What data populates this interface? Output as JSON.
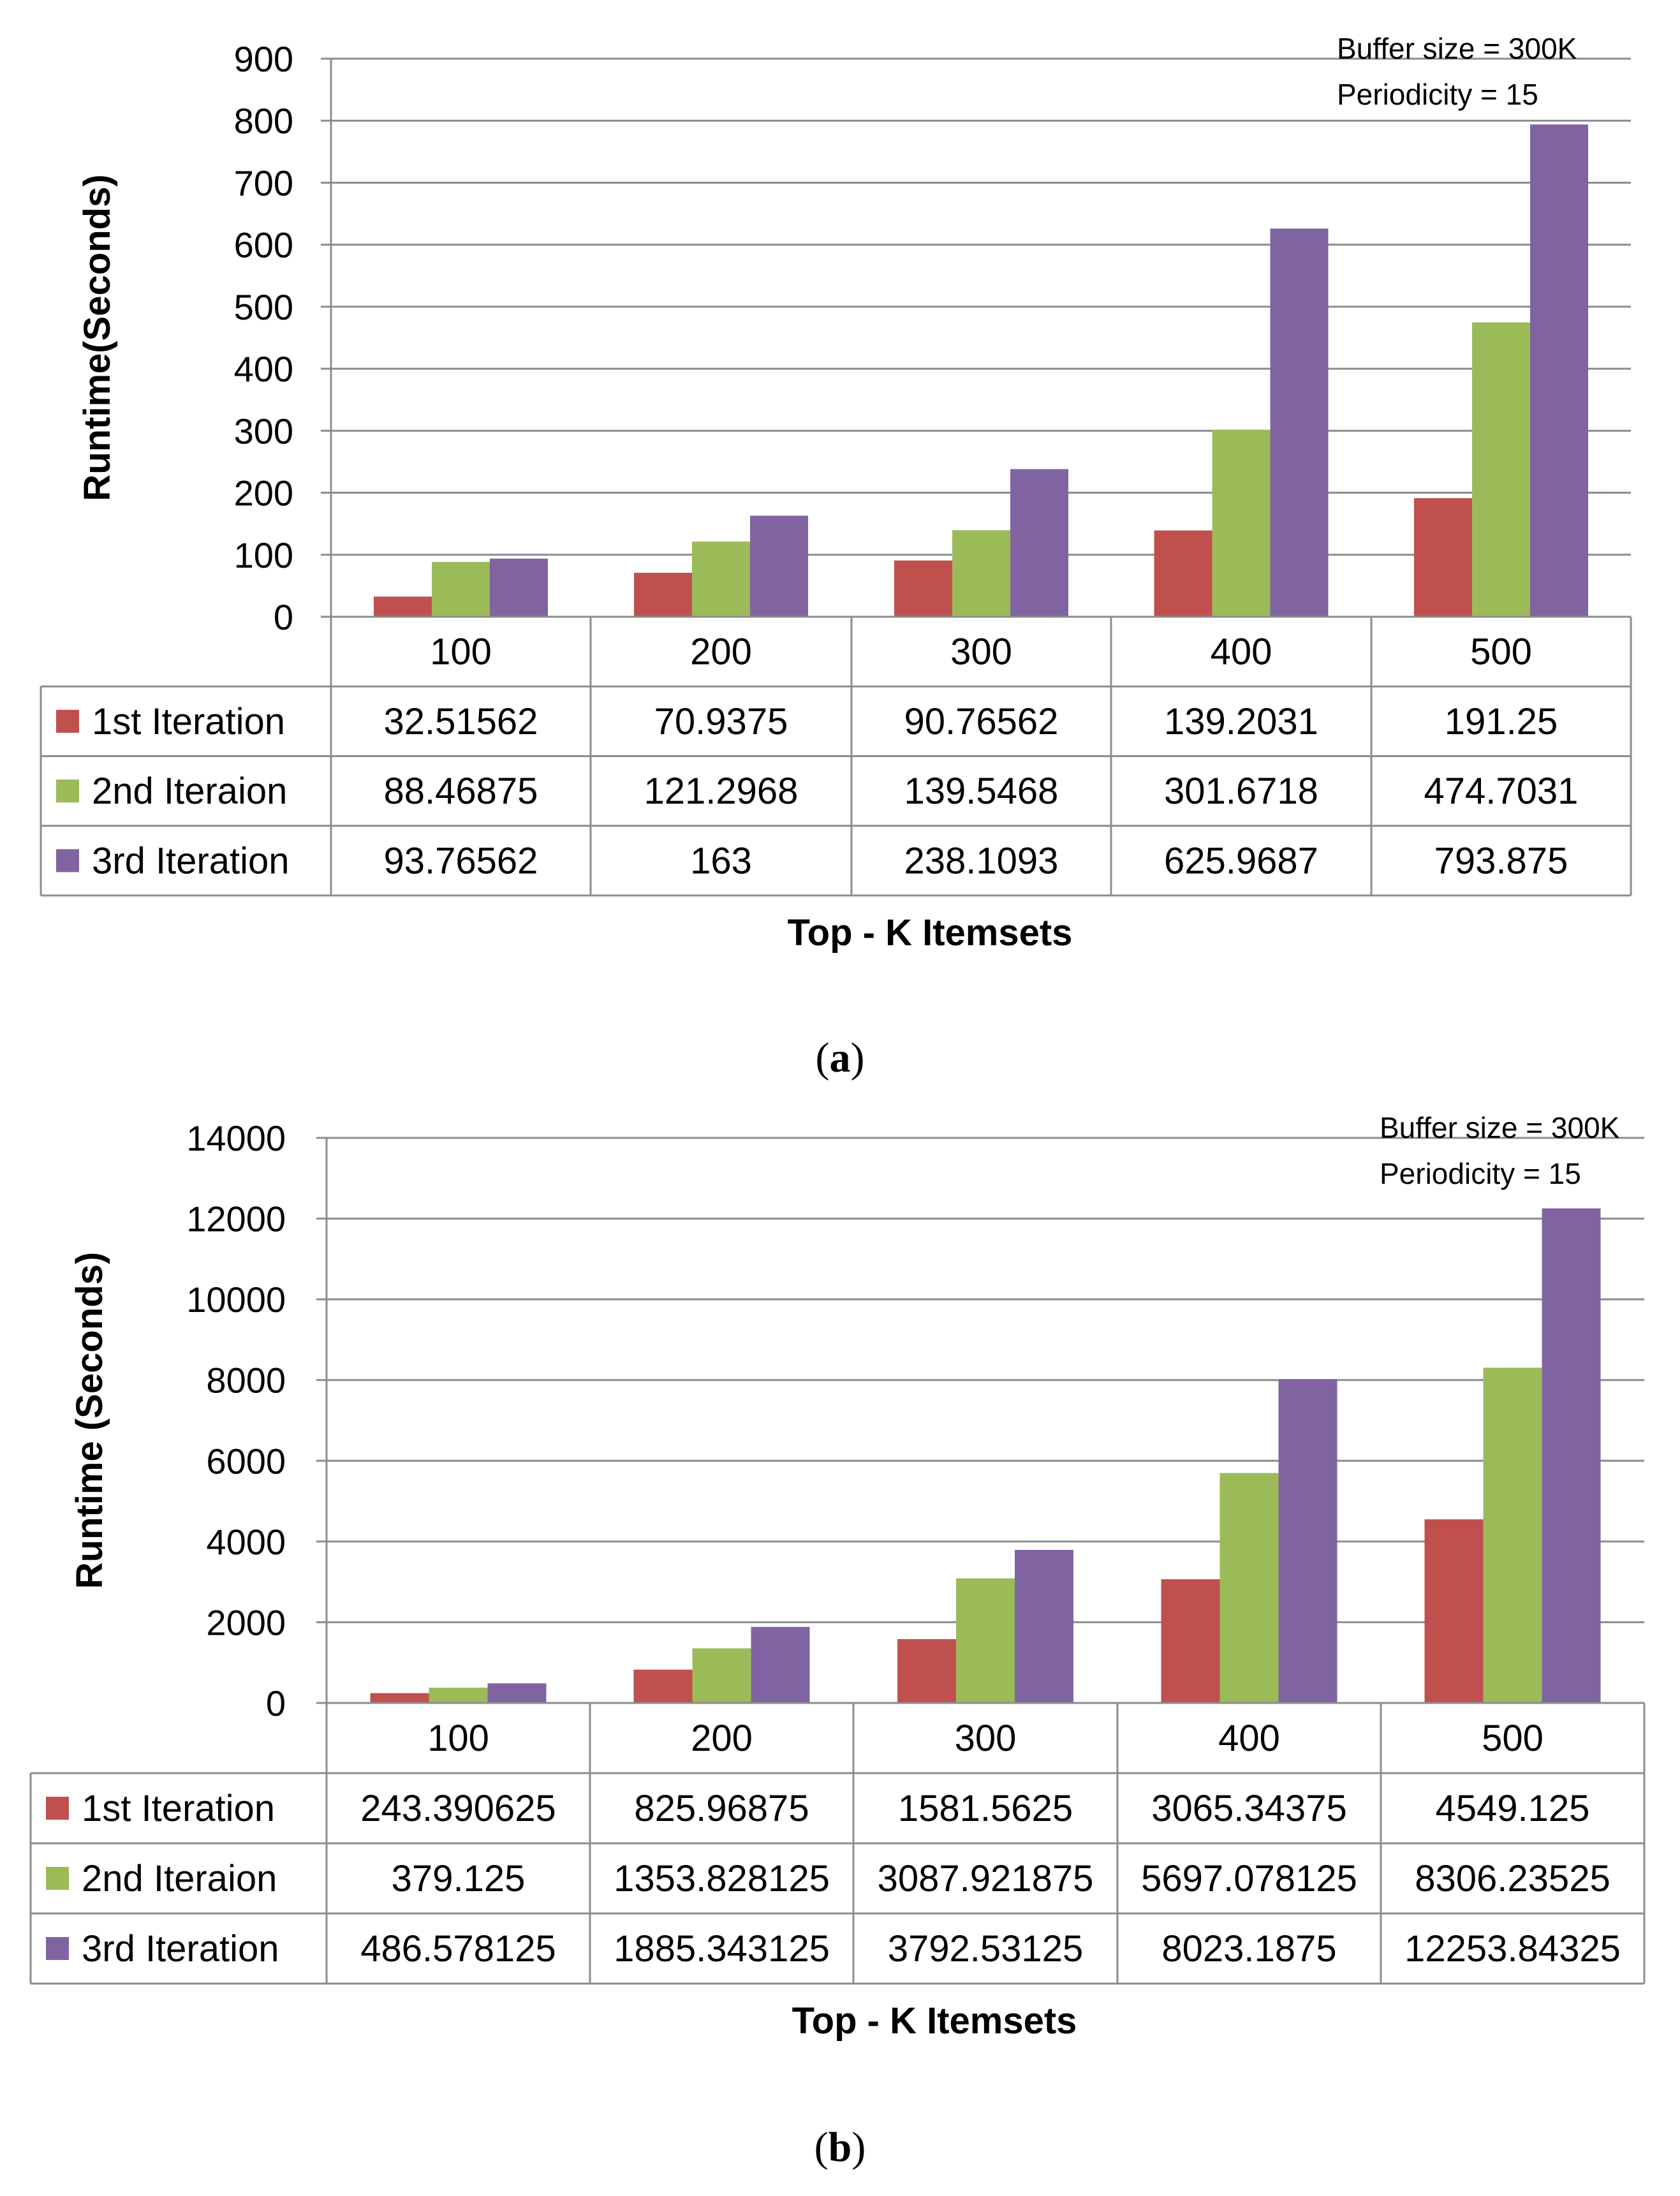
{
  "chart_data": [
    {
      "type": "bar",
      "panel": "a",
      "caption_letter": "a",
      "xlabel": "Top - K Itemsets",
      "ylabel": "Runtime(Seconds)",
      "ylim": [
        0,
        900
      ],
      "yticks": [
        0,
        100,
        200,
        300,
        400,
        500,
        600,
        700,
        800,
        900
      ],
      "categories": [
        "100",
        "200",
        "300",
        "400",
        "500"
      ],
      "annotations": [
        "Buffer size = 300K",
        "Periodicity = 15"
      ],
      "series": [
        {
          "name": "1st Iteration",
          "color": "#C0504D",
          "values": [
            32.51562,
            70.9375,
            90.76562,
            139.2031,
            191.25
          ],
          "labels": [
            "32.51562",
            "70.9375",
            "90.76562",
            "139.2031",
            "191.25"
          ]
        },
        {
          "name": "2nd Iteraion",
          "color": "#9BBB59",
          "values": [
            88.46875,
            121.2968,
            139.5468,
            301.6718,
            474.7031
          ],
          "labels": [
            "88.46875",
            "121.2968",
            "139.5468",
            "301.6718",
            "474.7031"
          ]
        },
        {
          "name": "3rd Iteration",
          "color": "#8064A2",
          "values": [
            93.76562,
            163,
            238.1093,
            625.9687,
            793.875
          ],
          "labels": [
            "93.76562",
            "163",
            "238.1093",
            "625.9687",
            "793.875"
          ]
        }
      ]
    },
    {
      "type": "bar",
      "panel": "b",
      "caption_letter": "b",
      "xlabel": "Top - K Itemsets",
      "ylabel": "Runtime (Seconds)",
      "ylim": [
        0,
        14000
      ],
      "yticks": [
        0,
        2000,
        4000,
        6000,
        8000,
        10000,
        12000,
        14000
      ],
      "categories": [
        "100",
        "200",
        "300",
        "400",
        "500"
      ],
      "annotations": [
        "Buffer size = 300K",
        "Periodicity = 15"
      ],
      "series": [
        {
          "name": "1st Iteration",
          "color": "#C0504D",
          "values": [
            243.390625,
            825.96875,
            1581.5625,
            3065.34375,
            4549.125
          ],
          "labels": [
            "243.390625",
            "825.96875",
            "1581.5625",
            "3065.34375",
            "4549.125"
          ]
        },
        {
          "name": "2nd Iteraion",
          "color": "#9BBB59",
          "values": [
            379.125,
            1353.828125,
            3087.921875,
            5697.078125,
            8306.23525
          ],
          "labels": [
            "379.125",
            "1353.828125",
            "3087.921875",
            "5697.078125",
            "8306.23525"
          ]
        },
        {
          "name": "3rd Iteration",
          "color": "#8064A2",
          "values": [
            486.578125,
            1885.343125,
            3792.53125,
            8023.1875,
            12253.84325
          ],
          "labels": [
            "486.578125",
            "1885.343125",
            "3792.53125",
            "8023.1875",
            "12253.84325"
          ]
        }
      ]
    }
  ]
}
